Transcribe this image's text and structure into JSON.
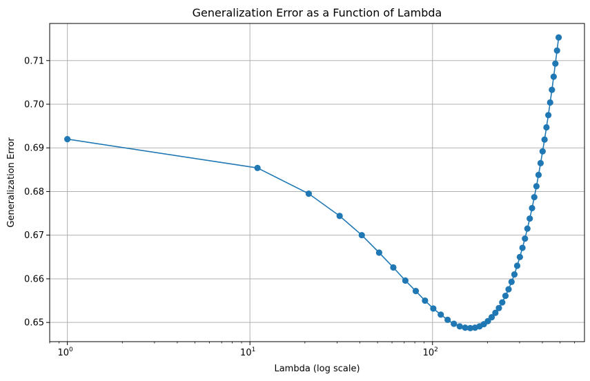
{
  "chart_data": {
    "type": "line",
    "title": "Generalization Error as a Function of Lambda",
    "xlabel": "Lambda (log scale)",
    "ylabel": "Generalization Error",
    "xscale": "log",
    "xlim": [
      0.8,
      680
    ],
    "ylim": [
      0.6456,
      0.7185
    ],
    "grid": true,
    "marker": "circle",
    "color": "#1f77b4",
    "x_ticks": [
      {
        "value": 1,
        "base": "10",
        "exp": "0"
      },
      {
        "value": 10,
        "base": "10",
        "exp": "1"
      },
      {
        "value": 100,
        "base": "10",
        "exp": "2"
      }
    ],
    "y_ticks": [
      "0.65",
      "0.66",
      "0.67",
      "0.68",
      "0.69",
      "0.70",
      "0.71"
    ],
    "series": [
      {
        "x": [
          1,
          11,
          21,
          31,
          41,
          51,
          61,
          71,
          81,
          91,
          101,
          111,
          121,
          131,
          141,
          151,
          161,
          171,
          181,
          191,
          201,
          211,
          221,
          231,
          241,
          251,
          261,
          271,
          281,
          291,
          301,
          311,
          321,
          331,
          341,
          351,
          361,
          371,
          381,
          391,
          401,
          411,
          421,
          431,
          441,
          451,
          461,
          471,
          481,
          491
        ],
        "y": [
          0.692,
          0.6854,
          0.6795,
          0.6744,
          0.67,
          0.666,
          0.6626,
          0.6596,
          0.6572,
          0.655,
          0.6532,
          0.6518,
          0.6506,
          0.6497,
          0.6491,
          0.6488,
          0.6487,
          0.6488,
          0.6491,
          0.6496,
          0.6503,
          0.6512,
          0.6522,
          0.6533,
          0.6546,
          0.6561,
          0.6576,
          0.6593,
          0.661,
          0.663,
          0.665,
          0.6671,
          0.6692,
          0.6715,
          0.6738,
          0.6762,
          0.6787,
          0.6812,
          0.6838,
          0.6865,
          0.6892,
          0.6919,
          0.6947,
          0.6975,
          0.7004,
          0.7033,
          0.7063,
          0.7093,
          0.7123,
          0.7153
        ]
      }
    ]
  }
}
